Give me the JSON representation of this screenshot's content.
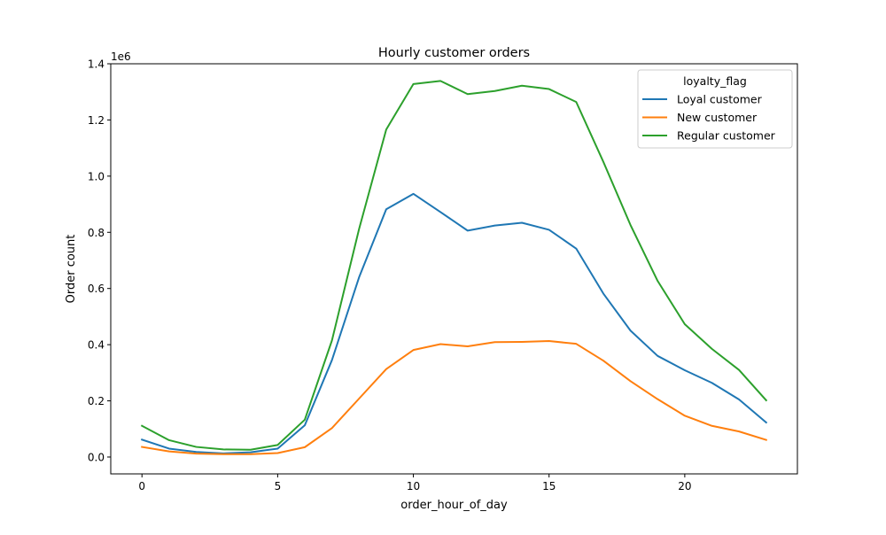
{
  "chart_data": {
    "type": "line",
    "title": "Hourly customer orders",
    "xlabel": "order_hour_of_day",
    "ylabel": "Order count",
    "y_offset_label": "1e6",
    "x": [
      0,
      1,
      2,
      3,
      4,
      5,
      6,
      7,
      8,
      9,
      10,
      11,
      12,
      13,
      14,
      15,
      16,
      17,
      18,
      19,
      20,
      21,
      22,
      23
    ],
    "xlim": [
      -1.15,
      24.15
    ],
    "ylim": [
      -60000,
      1400000
    ],
    "x_ticks": [
      0,
      5,
      10,
      15,
      20
    ],
    "x_tick_labels": [
      "0",
      "5",
      "10",
      "15",
      "20"
    ],
    "y_ticks": [
      0,
      200000,
      400000,
      600000,
      800000,
      1000000,
      1200000,
      1400000
    ],
    "y_tick_labels": [
      "0.0",
      "0.2",
      "0.4",
      "0.6",
      "0.8",
      "1.0",
      "1.2",
      "1.4"
    ],
    "grid": false,
    "legend": {
      "title": "loyalty_flag",
      "position": "top-right"
    },
    "series": [
      {
        "name": "Loyal customer",
        "color": "#1f77b4",
        "values": [
          62000,
          30000,
          18000,
          13000,
          17000,
          30000,
          113000,
          345000,
          640000,
          882000,
          937000,
          872000,
          806000,
          824000,
          834000,
          809000,
          742000,
          582000,
          450000,
          360000,
          309000,
          264000,
          205000,
          123000
        ]
      },
      {
        "name": "New customer",
        "color": "#ff7f0e",
        "values": [
          36000,
          20000,
          12000,
          10000,
          10000,
          14000,
          35000,
          103000,
          208000,
          313000,
          381000,
          402000,
          394000,
          409000,
          410000,
          413000,
          403000,
          343000,
          270000,
          206000,
          147000,
          111000,
          91000,
          61000
        ]
      },
      {
        "name": "Regular customer",
        "color": "#2ca02c",
        "values": [
          111000,
          60000,
          36000,
          27000,
          26000,
          43000,
          133000,
          415000,
          812000,
          1166000,
          1328000,
          1339000,
          1292000,
          1303000,
          1322000,
          1310000,
          1264000,
          1051000,
          826000,
          627000,
          473000,
          385000,
          310000,
          202000
        ]
      }
    ]
  }
}
